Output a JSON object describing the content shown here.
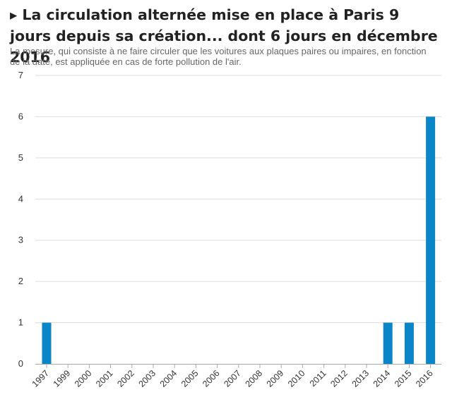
{
  "title": "▸ La circulation alternée mise en place à Paris 9 jours depuis sa création... dont 6 jours en décembre 2016",
  "subtitle": "La mesure, qui consiste à ne faire circuler que les voitures aux plaques paires ou impaires, en fonction de la date, est appliquée en cas de forte pollution de l'air.",
  "colors": {
    "bar": "#0a85c8",
    "grid": "#dddddd",
    "axis": "#aaaaaa"
  },
  "chart_data": {
    "type": "bar",
    "categories": [
      "1997",
      "1999",
      "2000",
      "2001",
      "2002",
      "2003",
      "2004",
      "2005",
      "2006",
      "2007",
      "2008",
      "2009",
      "2010",
      "2011",
      "2012",
      "2013",
      "2014",
      "2015",
      "2016"
    ],
    "values": [
      1,
      0,
      0,
      0,
      0,
      0,
      0,
      0,
      0,
      0,
      0,
      0,
      0,
      0,
      0,
      0,
      1,
      1,
      6
    ],
    "title": "▸ La circulation alternée mise en place à Paris 9 jours depuis sa création... dont 6 jours en décembre 2016",
    "xlabel": "",
    "ylabel": "",
    "ylim": [
      0,
      7
    ],
    "yticks": [
      "0",
      "1",
      "2",
      "3",
      "4",
      "5",
      "6",
      "7"
    ],
    "grid": true,
    "legend": "none"
  }
}
